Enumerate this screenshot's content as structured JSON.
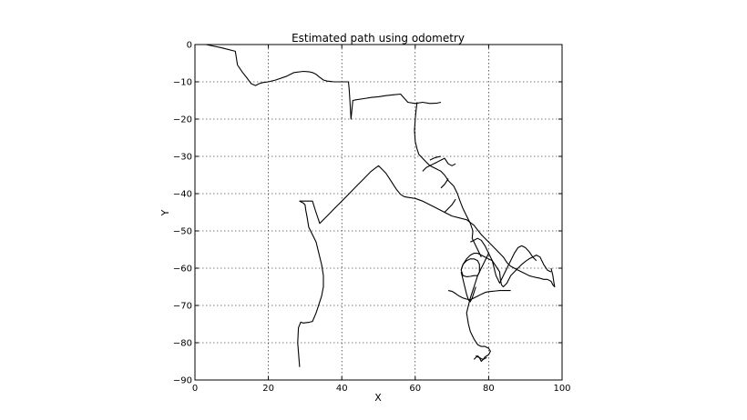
{
  "chart_data": {
    "type": "line",
    "title": "Estimated path using odometry",
    "xlabel": "X",
    "ylabel": "Y",
    "xlim": [
      0,
      100
    ],
    "ylim": [
      -90,
      0
    ],
    "xticks": [
      0,
      20,
      40,
      60,
      80,
      100
    ],
    "yticks": [
      0,
      -10,
      -20,
      -30,
      -40,
      -50,
      -60,
      -70,
      -80,
      -90
    ],
    "grid": true,
    "line_color": "#000000",
    "series": [
      {
        "x": [
          0,
          3,
          7,
          11,
          11.2,
          11.6,
          13,
          14.2,
          15.3,
          16.5,
          17.5,
          18.5,
          20,
          22,
          25,
          27,
          29.5,
          31,
          32,
          33,
          34,
          35,
          36,
          37,
          37.8,
          38.3,
          39,
          40,
          41,
          41.8,
          42,
          42.2,
          42.5,
          43,
          44,
          46,
          48,
          50,
          52,
          54,
          56,
          58,
          60,
          62,
          64,
          66,
          67
        ],
        "y": [
          0,
          0,
          -0.8,
          -1.8,
          -3,
          -5.5,
          -7.5,
          -9,
          -10.5,
          -11,
          -10.5,
          -10.2,
          -10,
          -9.5,
          -8.5,
          -7.5,
          -7.2,
          -7.3,
          -7.5,
          -8,
          -8.8,
          -9.5,
          -9.8,
          -9.9,
          -10,
          -10,
          -10,
          -10,
          -10,
          -10,
          -12,
          -15,
          -20,
          -15,
          -14.8,
          -14.5,
          -14.2,
          -14,
          -13.7,
          -13.5,
          -13.3,
          -15.5,
          -15.8,
          -15.5,
          -15.8,
          -15.7,
          -15.5
        ]
      },
      {
        "x": [
          60.5,
          60.2,
          60,
          59.8,
          60,
          60.5,
          61,
          62,
          63,
          63.5,
          64,
          65,
          66,
          67,
          67.5,
          68,
          69,
          70.5,
          71.5,
          72.2,
          73,
          74,
          75,
          75.7,
          75.5,
          76,
          76.5,
          77,
          77.5,
          78
        ],
        "y": [
          -15.5,
          -18,
          -20,
          -23,
          -26,
          -28,
          -29.5,
          -30.5,
          -31.5,
          -32,
          -32.5,
          -33,
          -33.5,
          -34,
          -34.5,
          -35,
          -36.5,
          -38,
          -40,
          -42,
          -44,
          -46,
          -48,
          -50,
          -52,
          -53,
          -54,
          -55,
          -56,
          -57
        ]
      },
      {
        "x": [
          62,
          63,
          64,
          65,
          66,
          67,
          68,
          69,
          70,
          71
        ],
        "y": [
          -34,
          -33,
          -32.5,
          -32,
          -31.5,
          -31,
          -30.5,
          -32,
          -32.5,
          -32
        ]
      },
      {
        "x": [
          64,
          65,
          66,
          67
        ],
        "y": [
          -31,
          -30.5,
          -30.2,
          -30
        ]
      },
      {
        "x": [
          67,
          68,
          69
        ],
        "y": [
          -38.5,
          -37.5,
          -36
        ]
      },
      {
        "x": [
          68,
          69,
          70,
          71
        ],
        "y": [
          -45,
          -44,
          -43,
          -41.5
        ]
      },
      {
        "x": [
          28.5,
          28,
          28.2,
          28.8,
          29.5,
          30.3,
          31.2,
          32,
          33,
          34,
          34.5,
          35,
          35,
          34.5,
          34,
          33.5,
          33,
          32,
          31,
          30.5,
          30.2,
          30,
          29.5,
          29,
          28.5,
          28.5,
          28.8,
          29,
          30,
          31,
          32,
          32.8,
          34,
          36,
          38,
          40,
          42,
          44,
          46,
          48,
          50,
          52,
          53,
          54,
          55,
          56,
          57,
          58,
          60,
          62,
          64,
          66,
          68,
          70,
          72,
          74,
          76,
          78,
          80,
          82,
          84,
          85,
          86,
          87,
          88,
          89,
          90,
          91,
          92,
          93,
          94,
          95,
          96,
          97,
          97.5,
          98,
          97.8,
          97.5,
          97
        ],
        "y": [
          -86.5,
          -80,
          -76,
          -74.5,
          -74.7,
          -74.6,
          -74.5,
          -74.3,
          -72,
          -69,
          -67.5,
          -65,
          -62,
          -59,
          -57,
          -55,
          -53,
          -51,
          -49,
          -46,
          -44.5,
          -43,
          -42.5,
          -42.3,
          -42,
          -42,
          -42,
          -42,
          -42,
          -42,
          -42,
          -44.5,
          -48,
          -46,
          -44,
          -42,
          -40,
          -38,
          -36,
          -34,
          -32.5,
          -34.5,
          -36,
          -37.5,
          -39,
          -40.2,
          -40.8,
          -41,
          -41.3,
          -42,
          -43,
          -44,
          -45,
          -46,
          -46.5,
          -47,
          -48.5,
          -51,
          -53,
          -55,
          -57,
          -58.5,
          -59.5,
          -60,
          -60.5,
          -61,
          -61.5,
          -62,
          -62.3,
          -62.5,
          -62.7,
          -63,
          -63,
          -63.5,
          -64.5,
          -65,
          -64,
          -62,
          -60
        ]
      },
      {
        "x": [
          75,
          76,
          77,
          78,
          79,
          80,
          81,
          82,
          83,
          83.2,
          83.5,
          84,
          85,
          86,
          87,
          88,
          89,
          90,
          91,
          92,
          93,
          94,
          95,
          96,
          97
        ],
        "y": [
          -53,
          -52.5,
          -52,
          -52.5,
          -54,
          -56,
          -58,
          -59.5,
          -61,
          -63,
          -64.5,
          -65,
          -64,
          -62,
          -61,
          -60,
          -59,
          -58.2,
          -57.5,
          -57,
          -56.5,
          -57,
          -59,
          -60.5,
          -61
        ]
      },
      {
        "x": [
          72.5,
          73,
          74,
          75,
          76,
          77,
          78,
          79,
          80,
          81,
          81.5,
          82,
          82.5,
          83,
          84,
          85,
          86,
          87,
          88,
          89,
          90,
          91,
          92,
          93
        ],
        "y": [
          -60.5,
          -59,
          -57.5,
          -56.5,
          -56,
          -56,
          -56.5,
          -57,
          -57.5,
          -58,
          -60,
          -62,
          -63,
          -64,
          -62,
          -60,
          -58,
          -56,
          -54.5,
          -54,
          -54.5,
          -55.5,
          -57,
          -58
        ]
      },
      {
        "x": [
          72.5,
          73,
          74,
          75,
          76,
          77,
          77.5,
          77.5,
          77,
          76,
          75,
          74,
          73,
          72.5
        ],
        "y": [
          -60.5,
          -59,
          -58,
          -57.5,
          -57.5,
          -58,
          -59,
          -61,
          -62,
          -62,
          -62.2,
          -62.3,
          -62,
          -60.5
        ]
      },
      {
        "x": [
          80,
          79.5,
          79,
          78.5,
          78,
          77.5,
          77,
          76.5,
          76,
          75.5,
          75,
          74.5,
          74,
          74.5,
          75,
          76,
          77,
          78,
          79,
          80,
          80.5,
          80,
          79,
          78.5,
          78,
          77.5,
          77,
          76.5,
          76
        ],
        "y": [
          -56,
          -57,
          -58,
          -59,
          -60,
          -61,
          -62,
          -63.5,
          -65,
          -66.5,
          -68,
          -70,
          -72,
          -75,
          -77,
          -79,
          -80.5,
          -81,
          -81,
          -81.5,
          -82.3,
          -83.2,
          -83.8,
          -84.5,
          -85,
          -84,
          -83.5,
          -84,
          -84.5
        ]
      },
      {
        "x": [
          76.5,
          77,
          77.5,
          78,
          78.5,
          79,
          79.5
        ],
        "y": [
          -83.5,
          -83.8,
          -84,
          -84.3,
          -84.5,
          -84.2,
          -84
        ]
      },
      {
        "x": [
          69,
          70,
          71,
          72,
          73,
          74,
          75,
          76,
          77,
          78,
          79,
          80,
          81,
          82,
          83,
          84,
          85,
          86
        ],
        "y": [
          -66,
          -66.2,
          -66.8,
          -67.5,
          -68,
          -68.3,
          -68.5,
          -68,
          -67.5,
          -67,
          -66.5,
          -66.3,
          -66.2,
          -66.1,
          -66,
          -66,
          -66,
          -66
        ]
      },
      {
        "x": [
          72.5,
          73,
          73.5,
          74,
          74.5,
          75,
          75.5,
          76,
          76.5
        ],
        "y": [
          -61,
          -63,
          -65,
          -67,
          -68.5,
          -69,
          -68,
          -66.5,
          -65
        ]
      }
    ]
  }
}
